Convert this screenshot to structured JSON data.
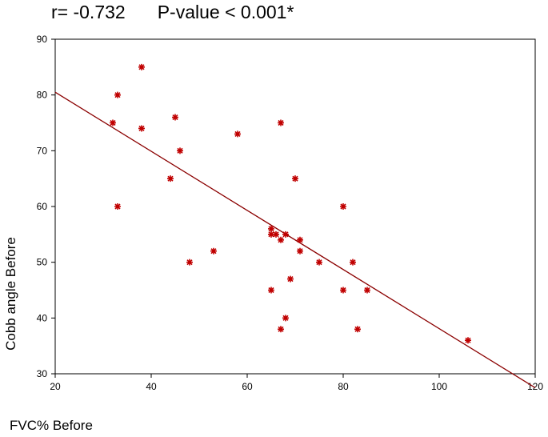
{
  "header": {
    "r_text": "r= -0.732",
    "p_text": "P-value < 0.001*"
  },
  "chart_data": {
    "type": "scatter",
    "xlabel": "FVC% Before",
    "ylabel": "Cobb angle Before",
    "xlim": [
      20,
      120
    ],
    "ylim": [
      30,
      90
    ],
    "x_ticks": [
      20,
      40,
      60,
      80,
      100,
      120
    ],
    "y_ticks": [
      30,
      40,
      50,
      60,
      70,
      80,
      90
    ],
    "grid": false,
    "marker_color": "#c00000",
    "line_color": "#8b0000",
    "fit_line": {
      "x": [
        20,
        120
      ],
      "y": [
        80.5,
        27.5
      ]
    },
    "points": [
      {
        "x": 38,
        "y": 85
      },
      {
        "x": 33,
        "y": 80
      },
      {
        "x": 45,
        "y": 76
      },
      {
        "x": 32,
        "y": 75
      },
      {
        "x": 38,
        "y": 74
      },
      {
        "x": 67,
        "y": 75
      },
      {
        "x": 58,
        "y": 73
      },
      {
        "x": 46,
        "y": 70
      },
      {
        "x": 44,
        "y": 65
      },
      {
        "x": 70,
        "y": 65
      },
      {
        "x": 33,
        "y": 60
      },
      {
        "x": 80,
        "y": 60
      },
      {
        "x": 65,
        "y": 56
      },
      {
        "x": 65,
        "y": 55
      },
      {
        "x": 66,
        "y": 55
      },
      {
        "x": 67,
        "y": 54
      },
      {
        "x": 68,
        "y": 55
      },
      {
        "x": 71,
        "y": 54
      },
      {
        "x": 53,
        "y": 52
      },
      {
        "x": 71,
        "y": 52
      },
      {
        "x": 48,
        "y": 50
      },
      {
        "x": 75,
        "y": 50
      },
      {
        "x": 82,
        "y": 50
      },
      {
        "x": 69,
        "y": 47
      },
      {
        "x": 65,
        "y": 45
      },
      {
        "x": 80,
        "y": 45
      },
      {
        "x": 85,
        "y": 45
      },
      {
        "x": 68,
        "y": 40
      },
      {
        "x": 67,
        "y": 38
      },
      {
        "x": 83,
        "y": 38
      },
      {
        "x": 106,
        "y": 36
      }
    ]
  }
}
